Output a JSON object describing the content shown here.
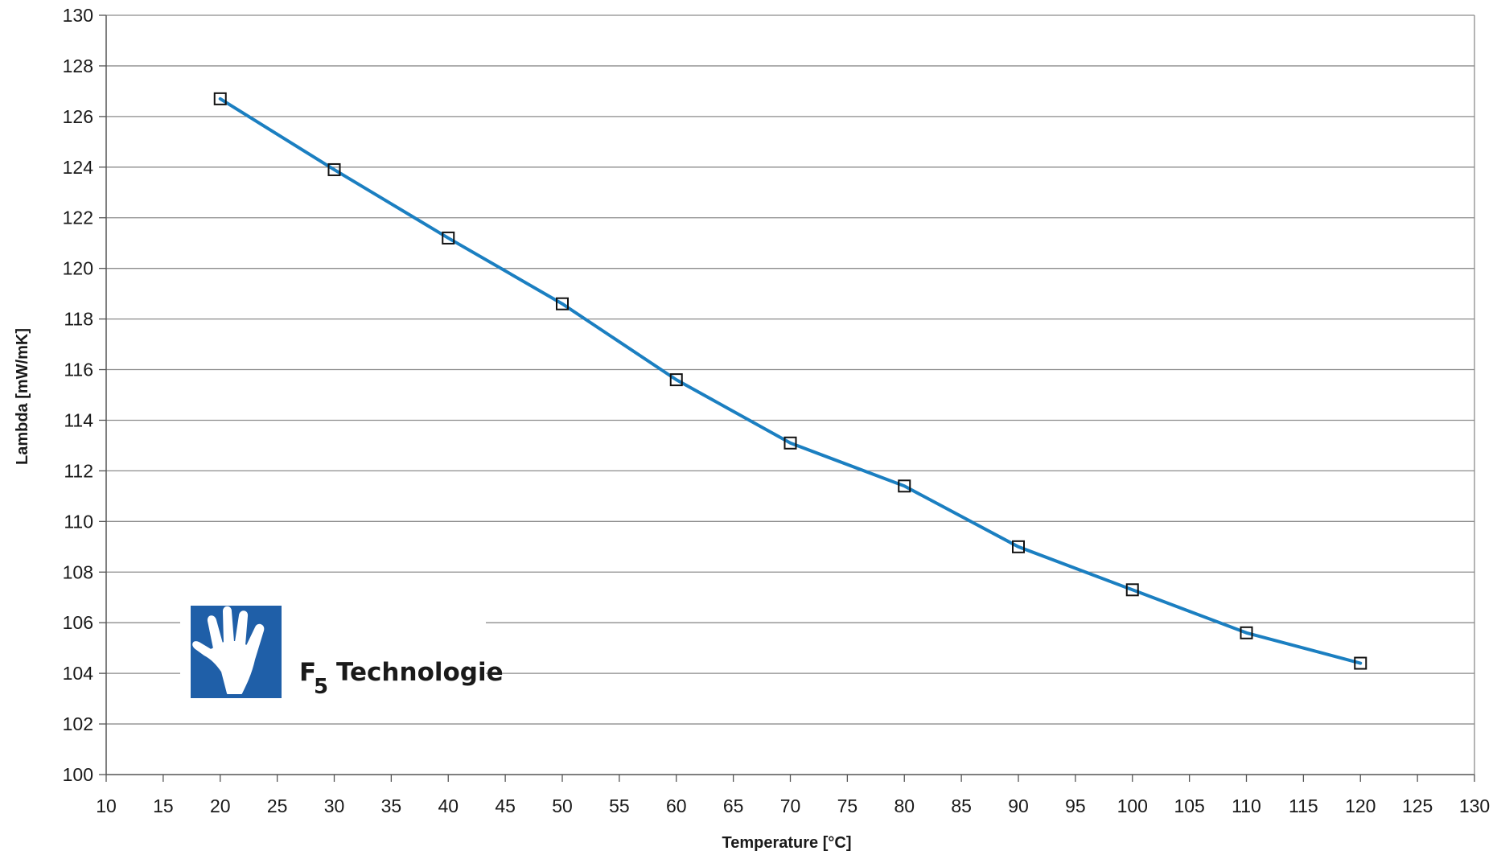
{
  "chart_data": {
    "type": "line",
    "xlabel": "Temperature [°C]",
    "ylabel": "Lambda [mW/mK]",
    "xlim": [
      10,
      130
    ],
    "ylim": [
      100,
      130
    ],
    "x_ticks": [
      10,
      15,
      20,
      25,
      30,
      35,
      40,
      45,
      50,
      55,
      60,
      65,
      70,
      75,
      80,
      85,
      90,
      95,
      100,
      105,
      110,
      115,
      120,
      125,
      130
    ],
    "y_ticks": [
      100,
      102,
      104,
      106,
      108,
      110,
      112,
      114,
      116,
      118,
      120,
      122,
      124,
      126,
      128,
      130
    ],
    "grid": "horizontal",
    "series": [
      {
        "x": [
          20,
          30,
          40,
          50,
          60,
          70,
          80,
          90,
          100,
          110,
          120
        ],
        "y": [
          126.7,
          123.9,
          121.2,
          118.6,
          115.6,
          113.1,
          111.4,
          109.0,
          107.3,
          105.6,
          104.4
        ],
        "color": "#1b7fc1",
        "marker": "square-open"
      }
    ]
  },
  "logo": {
    "main": "F",
    "sub": "5",
    "word": "Technologie",
    "icon": "hand-icon",
    "color": "#1f5fa8"
  }
}
